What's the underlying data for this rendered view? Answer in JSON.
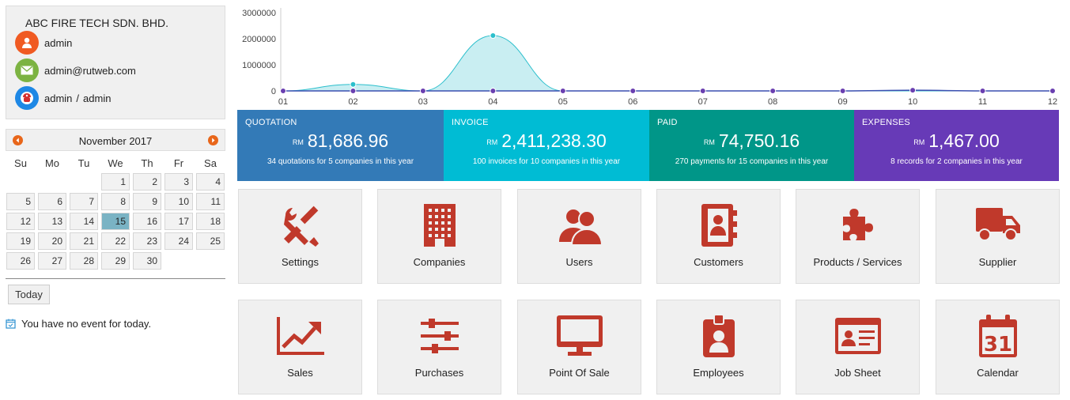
{
  "company": {
    "name": "ABC FIRE TECH SDN. BHD.",
    "username": "admin",
    "email": "admin@rutweb.com",
    "role_a": "admin",
    "role_sep": "/",
    "role_b": "admin"
  },
  "calendar": {
    "title": "November 2017",
    "weekdays": [
      "Su",
      "Mo",
      "Tu",
      "We",
      "Th",
      "Fr",
      "Sa"
    ],
    "days": [
      "1",
      "2",
      "3",
      "4",
      "5",
      "6",
      "7",
      "8",
      "9",
      "10",
      "11",
      "12",
      "13",
      "14",
      "15",
      "16",
      "17",
      "18",
      "19",
      "20",
      "21",
      "22",
      "23",
      "24",
      "25",
      "26",
      "27",
      "28",
      "29",
      "30"
    ],
    "selected_day": "15",
    "today_label": "Today",
    "no_event": "You have no event for today."
  },
  "chart_data": {
    "type": "area",
    "categories": [
      "01",
      "02",
      "03",
      "04",
      "05",
      "06",
      "07",
      "08",
      "09",
      "10",
      "11",
      "12"
    ],
    "ylim": [
      0,
      3000000
    ],
    "y_ticks": [
      "3000000",
      "2000000",
      "1000000",
      "0"
    ],
    "series": [
      {
        "values": [
          0,
          250000,
          0,
          2120000,
          0,
          0,
          0,
          0,
          0,
          0,
          0,
          0
        ]
      },
      {
        "values": [
          0,
          0,
          0,
          0,
          0,
          0,
          0,
          0,
          0,
          25000,
          0,
          0
        ]
      }
    ],
    "colors": {
      "area_fill": "#c9eef2",
      "area_line": "#2bbfcc",
      "base_line": "#3a4fb0",
      "marker": "#6a3fb0"
    }
  },
  "stats": [
    {
      "label": "QUOTATION",
      "currency": "RM",
      "value": "81,686.96",
      "sub": "34 quotations for 5 companies in this year",
      "color": "#337ab7"
    },
    {
      "label": "INVOICE",
      "currency": "RM",
      "value": "2,411,238.30",
      "sub": "100 invoices for 10 companies in this year",
      "color": "#00bcd4"
    },
    {
      "label": "PAID",
      "currency": "RM",
      "value": "74,750.16",
      "sub": "270 payments for 15 companies in this year",
      "color": "#009688"
    },
    {
      "label": "EXPENSES",
      "currency": "RM",
      "value": "1,467.00",
      "sub": "8 records for 2 companies in this year",
      "color": "#673ab7"
    }
  ],
  "tiles": [
    {
      "label": "Settings",
      "icon": "tools-icon"
    },
    {
      "label": "Companies",
      "icon": "building-icon"
    },
    {
      "label": "Users",
      "icon": "users-icon"
    },
    {
      "label": "Customers",
      "icon": "address-book-icon"
    },
    {
      "label": "Products / Services",
      "icon": "puzzle-icon"
    },
    {
      "label": "Supplier",
      "icon": "truck-icon"
    },
    {
      "label": "Sales",
      "icon": "trend-up-icon"
    },
    {
      "label": "Purchases",
      "icon": "sliders-icon"
    },
    {
      "label": "Point Of Sale",
      "icon": "monitor-icon"
    },
    {
      "label": "Employees",
      "icon": "id-badge-icon"
    },
    {
      "label": "Job Sheet",
      "icon": "id-card-icon"
    },
    {
      "label": "Calendar",
      "icon": "calendar-icon"
    }
  ],
  "colors": {
    "icon_red": "#c0392b",
    "orange": "#f05a22",
    "green": "#7cb342",
    "blue": "#1e88e5"
  }
}
